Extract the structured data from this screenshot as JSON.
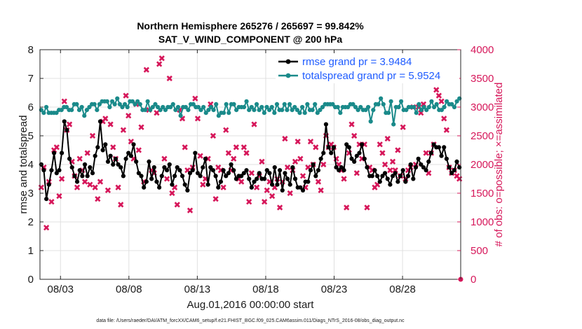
{
  "chart_data": {
    "type": "line",
    "title_line1": "Northern Hemisphere 265276 / 265697 = 99.842%",
    "title_line2": "SAT_V_WIND_COMPONENT @ 200 hPa",
    "xlabel": "Aug.01,2016 00:00:00 start",
    "ylabel_left": "rmse and totalspread",
    "ylabel_right": "# of obs: o=possible; ×=assimilated",
    "footnote": "data file: /Users/raeder/DAI/ATM_forcXX/CAM6_setup/f.e21.FHIST_BGC.f09_025.CAM6assim.011/Diags_NTrS_2016-08/obs_diag_output.nc",
    "xlim": [
      1.5,
      32.25
    ],
    "ylim_left": [
      0,
      8
    ],
    "ylim_right": [
      0,
      4000
    ],
    "x_ticks": [
      3,
      8,
      13,
      18,
      23,
      28
    ],
    "x_tick_labels": [
      "08/03",
      "08/08",
      "08/13",
      "08/18",
      "08/23",
      "08/28"
    ],
    "y_left_ticks": [
      "0",
      "1",
      "2",
      "3",
      "4",
      "5",
      "6",
      "7",
      "8"
    ],
    "y_right_ticks": [
      "0",
      "500",
      "1000",
      "1500",
      "2000",
      "2500",
      "3000",
      "3500",
      "4000"
    ],
    "colors": {
      "rmse": "#000000",
      "spread": "#1a8a8a",
      "obs": "#d6175a",
      "legend_text": "#1f5cff"
    },
    "series": [
      {
        "name": "rmse grand pr = 3.9484",
        "axis": "left",
        "values": [
          4.0,
          3.8,
          2.8,
          3.3,
          3.8,
          4.4,
          3.7,
          3.8,
          4.4,
          5.5,
          5.2,
          4.2,
          3.9,
          3.6,
          3.4,
          3.8,
          3.6,
          4.0,
          3.6,
          3.9,
          3.7,
          4.3,
          4.6,
          5.5,
          4.5,
          4.7,
          4.1,
          4.3,
          4.0,
          4.2,
          4.0,
          3.9,
          3.6,
          4.2,
          4.4,
          4.3,
          4.7,
          4.1,
          3.7,
          3.6,
          3.2,
          3.4,
          4.1,
          3.5,
          3.9,
          3.4,
          3.2,
          3.6,
          3.9,
          3.8,
          4.0,
          3.3,
          3.6,
          3.9,
          3.8,
          3.6,
          3.3,
          3.1,
          3.7,
          3.8,
          4.4,
          3.7,
          3.6,
          3.9,
          4.2,
          3.3,
          3.9,
          3.8,
          3.6,
          3.2,
          3.4,
          3.8,
          3.6,
          3.7,
          4.0,
          3.8,
          3.5,
          3.6,
          3.6,
          3.7,
          3.8,
          3.5,
          3.2,
          3.4,
          3.5,
          3.7,
          3.5,
          3.5,
          3.8,
          3.7,
          3.3,
          3.9,
          3.3,
          3.8,
          3.1,
          3.7,
          3.5,
          3.3,
          3.9,
          3.5,
          3.2,
          3.2,
          3.1,
          3.4,
          3.4,
          3.8,
          4.0,
          3.6,
          3.8,
          4.2,
          4.4,
          5.4,
          4.6,
          4.4,
          4.6,
          3.9,
          3.8,
          3.9,
          3.8,
          4.7,
          4.6,
          4.2,
          4.1,
          4.3,
          4.4,
          4.7,
          4.2,
          3.9,
          3.6,
          3.6,
          3.8,
          3.6,
          3.4,
          3.6,
          3.7,
          3.5,
          3.3,
          3.6,
          3.7,
          3.4,
          3.6,
          3.8,
          3.4,
          3.6,
          4.0,
          3.5,
          3.9,
          4.2,
          4.0,
          3.9,
          3.8,
          4.1,
          4.4,
          4.7,
          4.6,
          4.6,
          4.3,
          4.6,
          4.2,
          3.9,
          3.7,
          3.8,
          4.1,
          3.9
        ]
      },
      {
        "name": "totalspread grand pr = 5.9524",
        "axis": "left",
        "values": [
          5.9,
          5.8,
          6.0,
          5.8,
          5.8,
          5.8,
          5.8,
          5.9,
          5.9,
          6.0,
          6.0,
          5.9,
          5.9,
          6.1,
          6.1,
          5.9,
          6.0,
          5.7,
          5.9,
          6.0,
          6.1,
          6.1,
          5.9,
          6.1,
          6.2,
          6.2,
          6.2,
          6.0,
          6.2,
          6.1,
          6.3,
          6.1,
          6.0,
          6.1,
          6.0,
          6.2,
          6.2,
          6.1,
          6.2,
          6.1,
          5.9,
          5.9,
          6.2,
          5.9,
          6.0,
          6.1,
          6.0,
          5.9,
          6.0,
          5.9,
          6.0,
          6.0,
          6.1,
          5.9,
          6.0,
          5.7,
          6.0,
          6.0,
          5.9,
          6.1,
          6.1,
          6.0,
          6.0,
          5.9,
          6.0,
          5.8,
          5.9,
          6.0,
          5.9,
          6.1,
          5.7,
          5.8,
          5.8,
          6.1,
          5.8,
          6.1,
          6.1,
          5.9,
          6.0,
          6.0,
          6.0,
          6.2,
          5.9,
          6.0,
          5.9,
          6.1,
          5.9,
          6.0,
          5.8,
          6.0,
          5.9,
          6.0,
          5.8,
          6.1,
          5.9,
          5.9,
          6.1,
          5.9,
          6.1,
          5.9,
          6.0,
          5.9,
          5.8,
          6.0,
          5.8,
          6.1,
          5.9,
          5.9,
          6.1,
          5.8,
          5.9,
          6.0,
          6.1,
          6.1,
          6.1,
          6.1,
          6.0,
          6.0,
          5.8,
          6.0,
          6.0,
          6.0,
          6.1,
          6.1,
          6.0,
          5.9,
          6.0,
          5.9,
          5.9,
          6.0,
          5.5,
          5.9,
          6.1,
          6.1,
          6.3,
          6.1,
          5.8,
          5.8,
          6.2,
          5.4,
          6.0,
          6.0,
          6.2,
          5.9,
          5.9,
          6.0,
          6.0,
          6.0,
          5.8,
          6.1,
          5.9,
          6.0,
          5.9,
          6.0,
          6.2,
          6.0,
          6.1,
          5.9,
          5.9,
          6.0,
          6.2,
          6.1,
          6.1,
          6.0,
          6.2,
          6.3
        ]
      },
      {
        "name": "obs assimilated",
        "axis": "right",
        "marker": "x",
        "values": [
          1600,
          1950,
          900,
          1700,
          1350,
          2250,
          2300,
          1450,
          1750,
          3100,
          2600,
          2700,
          2050,
          1800,
          1600,
          2100,
          1900,
          1700,
          2200,
          1650,
          2500,
          1600,
          1400,
          1700,
          2750,
          2800,
          1550,
          2700,
          2300,
          2100,
          1600,
          1300,
          2600,
          3200,
          2850,
          2400,
          2100,
          3050,
          2250,
          2650,
          1700,
          3650,
          2950,
          1900,
          1850,
          2900,
          3750,
          3850,
          2100,
          1750,
          3500,
          1500,
          1600,
          1300,
          2950,
          2800,
          2300,
          1900,
          1200,
          1950,
          3150,
          2800,
          2150,
          1650,
          1750,
          2100,
          3050,
          2500,
          1400,
          1950,
          1900,
          1600,
          2600,
          2200,
          1900,
          2100,
          2300,
          1750,
          1700,
          2300,
          2200,
          1350,
          1850,
          2700,
          1600,
          1800,
          2050,
          1350,
          1550,
          1700,
          1450,
          1600,
          1750,
          1250,
          1700,
          2450,
          1950,
          1500,
          1900,
          2050,
          2400,
          2100,
          1800,
          1600,
          1950,
          2400,
          2000,
          2300,
          1700,
          1550,
          2000,
          2500,
          2300,
          2350,
          2300,
          2100,
          2000,
          1900,
          1750,
          1250,
          2200,
          2700,
          2500,
          1850,
          2350,
          2100,
          2350,
          1250,
          1950,
          1900,
          1600,
          1650,
          2350,
          2200,
          2000,
          2450,
          1900,
          2050,
          1900,
          2250,
          1800,
          2650,
          1750,
          1900,
          1950,
          3000,
          2000,
          3000,
          2900,
          3050,
          2200,
          1850,
          2200,
          2350,
          3300,
          3200,
          3100,
          2800,
          2600,
          1950,
          1850,
          1900,
          1800,
          1750
        ]
      }
    ]
  }
}
